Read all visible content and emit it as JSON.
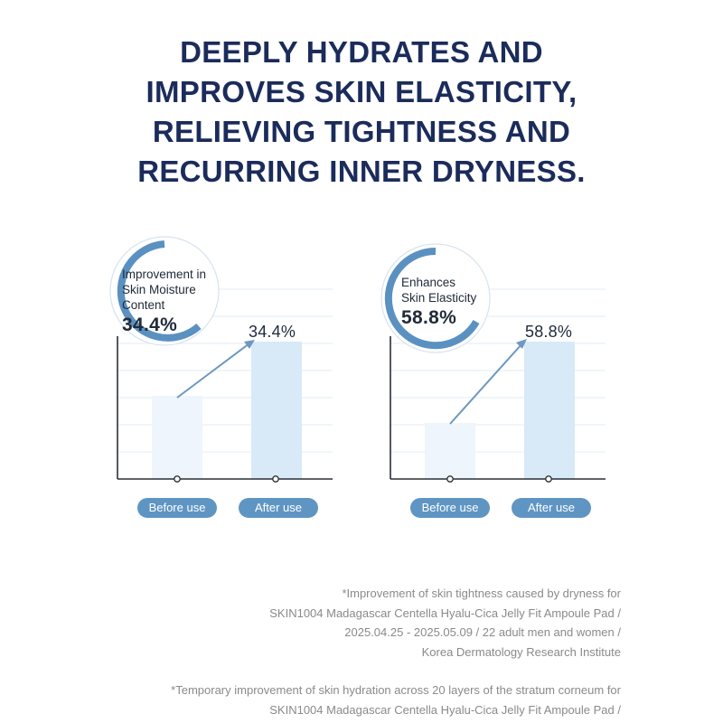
{
  "headline": {
    "lines": [
      "DEEPLY HYDRATES AND",
      "IMPROVES SKIN ELASTICITY,",
      "RELIEVING TIGHTNESS AND",
      "RECURRING INNER DRYNESS."
    ]
  },
  "colors": {
    "headline": "#1b2c5b",
    "ring": "#5b91c1",
    "bar_before": "#eef5fc",
    "bar_after": "#d8e9f8",
    "pill": "#5f95c2"
  },
  "charts": [
    {
      "label_lines": [
        "Improvement in",
        "Skin Moisture",
        "Content"
      ],
      "value": "34.4%",
      "after_value": "34.4%",
      "before_label": "Before use",
      "after_label": "After use"
    },
    {
      "label_lines": [
        "Enhances",
        "Skin Elasticity"
      ],
      "value": "58.8%",
      "after_value": "58.8%",
      "before_label": "Before use",
      "after_label": "After use"
    }
  ],
  "footnotes": [
    {
      "lines": [
        "*Improvement of skin tightness caused by dryness for",
        "SKIN1004 Madagascar Centella Hyalu-Cica Jelly Fit Ampoule Pad /",
        "2025.04.25 - 2025.05.09 / 22 adult men and women /",
        "Korea Dermatology Research Institute"
      ]
    },
    {
      "lines": [
        "*Temporary improvement of skin hydration across 20 layers of the stratum corneum for",
        "SKIN1004 Madagascar Centella Hyalu-Cica Jelly Fit Ampoule Pad /"
      ]
    }
  ]
}
